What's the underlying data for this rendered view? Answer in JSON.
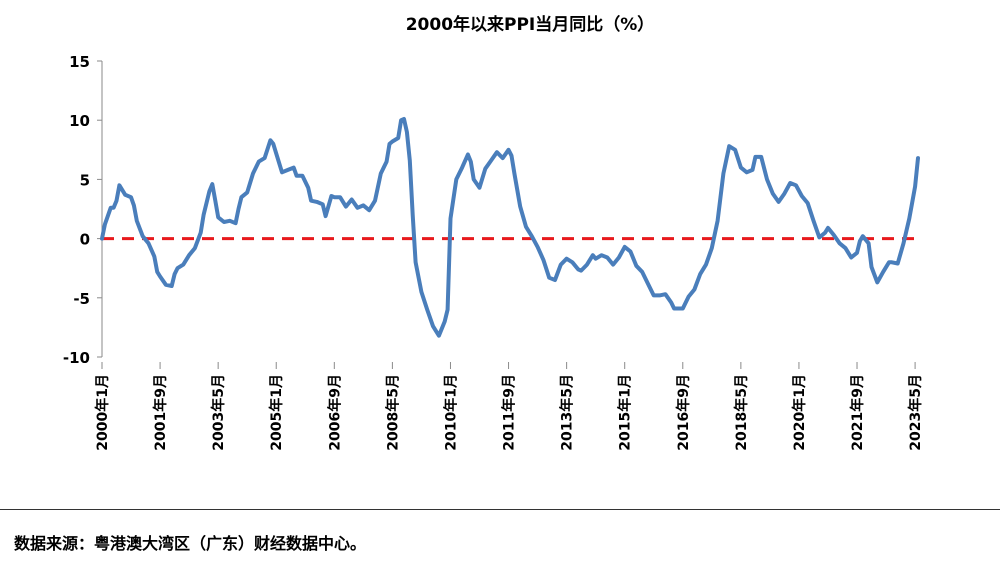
{
  "chart_data": {
    "type": "line",
    "title": "2000年以来PPI当月同比（%）",
    "xlabel": "",
    "ylabel": "",
    "ylim": [
      -10,
      15
    ],
    "yticks": [
      "15",
      "10",
      "5",
      "0",
      "-5",
      "-10"
    ],
    "xtick_labels": [
      "2000年1月",
      "2001年9月",
      "2003年5月",
      "2005年1月",
      "2006年9月",
      "2008年5月",
      "2010年1月",
      "2011年9月",
      "2013年5月",
      "2015年1月",
      "2016年9月",
      "2018年5月",
      "2020年1月",
      "2021年9月",
      "2023年5月"
    ],
    "x_start": "2000-01",
    "x_end": "2023-06",
    "grid": false,
    "legend": "none",
    "reference_line": {
      "y": 0,
      "style": "dashed",
      "color": "#e8191c"
    },
    "series_color": "#4a7ebb",
    "series": [
      {
        "values": [
          {
            "x": "2000-01",
            "y": 0.0
          },
          {
            "x": "2000-02",
            "y": 1.2
          },
          {
            "x": "2000-04",
            "y": 2.6
          },
          {
            "x": "2000-05",
            "y": 2.6
          },
          {
            "x": "2000-06",
            "y": 3.2
          },
          {
            "x": "2000-07",
            "y": 4.5
          },
          {
            "x": "2000-09",
            "y": 3.7
          },
          {
            "x": "2000-11",
            "y": 3.5
          },
          {
            "x": "2000-12",
            "y": 2.8
          },
          {
            "x": "2001-01",
            "y": 1.5
          },
          {
            "x": "2001-03",
            "y": 0.2
          },
          {
            "x": "2001-05",
            "y": -0.4
          },
          {
            "x": "2001-07",
            "y": -1.5
          },
          {
            "x": "2001-08",
            "y": -2.8
          },
          {
            "x": "2001-09",
            "y": -3.2
          },
          {
            "x": "2001-11",
            "y": -3.9
          },
          {
            "x": "2002-01",
            "y": -4.0
          },
          {
            "x": "2002-02",
            "y": -3.0
          },
          {
            "x": "2002-03",
            "y": -2.5
          },
          {
            "x": "2002-05",
            "y": -2.2
          },
          {
            "x": "2002-07",
            "y": -1.4
          },
          {
            "x": "2002-09",
            "y": -0.8
          },
          {
            "x": "2002-11",
            "y": 0.5
          },
          {
            "x": "2002-12",
            "y": 2.0
          },
          {
            "x": "2003-02",
            "y": 4.0
          },
          {
            "x": "2003-03",
            "y": 4.6
          },
          {
            "x": "2003-04",
            "y": 3.2
          },
          {
            "x": "2003-05",
            "y": 1.8
          },
          {
            "x": "2003-07",
            "y": 1.4
          },
          {
            "x": "2003-09",
            "y": 1.5
          },
          {
            "x": "2003-11",
            "y": 1.3
          },
          {
            "x": "2003-12",
            "y": 2.5
          },
          {
            "x": "2004-01",
            "y": 3.5
          },
          {
            "x": "2004-03",
            "y": 3.9
          },
          {
            "x": "2004-05",
            "y": 5.5
          },
          {
            "x": "2004-07",
            "y": 6.5
          },
          {
            "x": "2004-09",
            "y": 6.8
          },
          {
            "x": "2004-11",
            "y": 8.3
          },
          {
            "x": "2004-12",
            "y": 8.0
          },
          {
            "x": "2005-01",
            "y": 7.2
          },
          {
            "x": "2005-03",
            "y": 5.6
          },
          {
            "x": "2005-05",
            "y": 5.8
          },
          {
            "x": "2005-07",
            "y": 6.0
          },
          {
            "x": "2005-08",
            "y": 5.3
          },
          {
            "x": "2005-10",
            "y": 5.3
          },
          {
            "x": "2005-12",
            "y": 4.3
          },
          {
            "x": "2006-01",
            "y": 3.2
          },
          {
            "x": "2006-03",
            "y": 3.1
          },
          {
            "x": "2006-05",
            "y": 2.9
          },
          {
            "x": "2006-06",
            "y": 1.9
          },
          {
            "x": "2006-08",
            "y": 3.6
          },
          {
            "x": "2006-09",
            "y": 3.5
          },
          {
            "x": "2006-11",
            "y": 3.5
          },
          {
            "x": "2007-01",
            "y": 2.7
          },
          {
            "x": "2007-03",
            "y": 3.3
          },
          {
            "x": "2007-05",
            "y": 2.6
          },
          {
            "x": "2007-07",
            "y": 2.8
          },
          {
            "x": "2007-09",
            "y": 2.4
          },
          {
            "x": "2007-11",
            "y": 3.2
          },
          {
            "x": "2008-01",
            "y": 5.5
          },
          {
            "x": "2008-03",
            "y": 6.5
          },
          {
            "x": "2008-04",
            "y": 8.0
          },
          {
            "x": "2008-05",
            "y": 8.2
          },
          {
            "x": "2008-07",
            "y": 8.5
          },
          {
            "x": "2008-08",
            "y": 10.0
          },
          {
            "x": "2008-09",
            "y": 10.1
          },
          {
            "x": "2008-10",
            "y": 9.0
          },
          {
            "x": "2008-11",
            "y": 6.6
          },
          {
            "x": "2008-12",
            "y": 2.0
          },
          {
            "x": "2009-01",
            "y": -2.0
          },
          {
            "x": "2009-03",
            "y": -4.5
          },
          {
            "x": "2009-05",
            "y": -6.0
          },
          {
            "x": "2009-07",
            "y": -7.4
          },
          {
            "x": "2009-09",
            "y": -8.2
          },
          {
            "x": "2009-11",
            "y": -7.0
          },
          {
            "x": "2009-12",
            "y": -6.0
          },
          {
            "x": "2010-01",
            "y": 1.7
          },
          {
            "x": "2010-03",
            "y": 5.0
          },
          {
            "x": "2010-05",
            "y": 6.0
          },
          {
            "x": "2010-07",
            "y": 7.1
          },
          {
            "x": "2010-08",
            "y": 6.5
          },
          {
            "x": "2010-09",
            "y": 5.0
          },
          {
            "x": "2010-11",
            "y": 4.3
          },
          {
            "x": "2011-01",
            "y": 5.9
          },
          {
            "x": "2011-03",
            "y": 6.6
          },
          {
            "x": "2011-05",
            "y": 7.3
          },
          {
            "x": "2011-07",
            "y": 6.8
          },
          {
            "x": "2011-09",
            "y": 7.5
          },
          {
            "x": "2011-10",
            "y": 7.0
          },
          {
            "x": "2011-11",
            "y": 5.5
          },
          {
            "x": "2012-01",
            "y": 2.7
          },
          {
            "x": "2012-03",
            "y": 1.0
          },
          {
            "x": "2012-05",
            "y": 0.2
          },
          {
            "x": "2012-07",
            "y": -0.7
          },
          {
            "x": "2012-09",
            "y": -1.8
          },
          {
            "x": "2012-11",
            "y": -3.3
          },
          {
            "x": "2013-01",
            "y": -3.5
          },
          {
            "x": "2013-03",
            "y": -2.2
          },
          {
            "x": "2013-05",
            "y": -1.7
          },
          {
            "x": "2013-07",
            "y": -2.0
          },
          {
            "x": "2013-09",
            "y": -2.6
          },
          {
            "x": "2013-10",
            "y": -2.7
          },
          {
            "x": "2013-12",
            "y": -2.2
          },
          {
            "x": "2014-02",
            "y": -1.4
          },
          {
            "x": "2014-03",
            "y": -1.7
          },
          {
            "x": "2014-05",
            "y": -1.4
          },
          {
            "x": "2014-07",
            "y": -1.6
          },
          {
            "x": "2014-09",
            "y": -2.2
          },
          {
            "x": "2014-11",
            "y": -1.6
          },
          {
            "x": "2015-01",
            "y": -0.7
          },
          {
            "x": "2015-03",
            "y": -1.1
          },
          {
            "x": "2015-05",
            "y": -2.3
          },
          {
            "x": "2015-07",
            "y": -2.8
          },
          {
            "x": "2015-09",
            "y": -3.8
          },
          {
            "x": "2015-11",
            "y": -4.8
          },
          {
            "x": "2016-01",
            "y": -4.8
          },
          {
            "x": "2016-03",
            "y": -4.7
          },
          {
            "x": "2016-05",
            "y": -5.4
          },
          {
            "x": "2016-06",
            "y": -5.9
          },
          {
            "x": "2016-08",
            "y": -5.9
          },
          {
            "x": "2016-09",
            "y": -5.9
          },
          {
            "x": "2016-11",
            "y": -4.9
          },
          {
            "x": "2017-01",
            "y": -4.3
          },
          {
            "x": "2017-03",
            "y": -3.0
          },
          {
            "x": "2017-05",
            "y": -2.2
          },
          {
            "x": "2017-07",
            "y": -0.8
          },
          {
            "x": "2017-09",
            "y": 1.5
          },
          {
            "x": "2017-11",
            "y": 5.5
          },
          {
            "x": "2018-01",
            "y": 7.8
          },
          {
            "x": "2018-03",
            "y": 7.5
          },
          {
            "x": "2018-05",
            "y": 6.0
          },
          {
            "x": "2018-07",
            "y": 5.6
          },
          {
            "x": "2018-09",
            "y": 5.8
          },
          {
            "x": "2018-10",
            "y": 6.9
          },
          {
            "x": "2018-12",
            "y": 6.9
          },
          {
            "x": "2019-02",
            "y": 5.0
          },
          {
            "x": "2019-04",
            "y": 3.8
          },
          {
            "x": "2019-06",
            "y": 3.1
          },
          {
            "x": "2019-08",
            "y": 3.8
          },
          {
            "x": "2019-10",
            "y": 4.7
          },
          {
            "x": "2019-12",
            "y": 4.5
          },
          {
            "x": "2020-02",
            "y": 3.6
          },
          {
            "x": "2020-04",
            "y": 3.0
          },
          {
            "x": "2020-06",
            "y": 1.5
          },
          {
            "x": "2020-08",
            "y": 0.1
          },
          {
            "x": "2020-10",
            "y": 0.5
          },
          {
            "x": "2020-11",
            "y": 0.9
          },
          {
            "x": "2021-01",
            "y": 0.3
          },
          {
            "x": "2021-03",
            "y": -0.4
          },
          {
            "x": "2021-05",
            "y": -0.8
          },
          {
            "x": "2021-07",
            "y": -1.6
          },
          {
            "x": "2021-09",
            "y": -1.2
          },
          {
            "x": "2021-10",
            "y": -0.2
          },
          {
            "x": "2021-11",
            "y": 0.2
          },
          {
            "x": "2022-01",
            "y": -0.4
          },
          {
            "x": "2022-02",
            "y": -2.4
          },
          {
            "x": "2022-04",
            "y": -3.7
          },
          {
            "x": "2022-06",
            "y": -2.8
          },
          {
            "x": "2022-08",
            "y": -2.0
          },
          {
            "x": "2022-09",
            "y": -2.0
          },
          {
            "x": "2022-11",
            "y": -2.1
          },
          {
            "x": "2023-01",
            "y": -0.4
          },
          {
            "x": "2023-03",
            "y": 1.7
          },
          {
            "x": "2023-05",
            "y": 4.4
          },
          {
            "x": "2023-06",
            "y": 6.8
          }
        ]
      }
    ]
  },
  "footer": {
    "source": "数据来源：粤港澳大湾区（广东）财经数据中心。"
  }
}
